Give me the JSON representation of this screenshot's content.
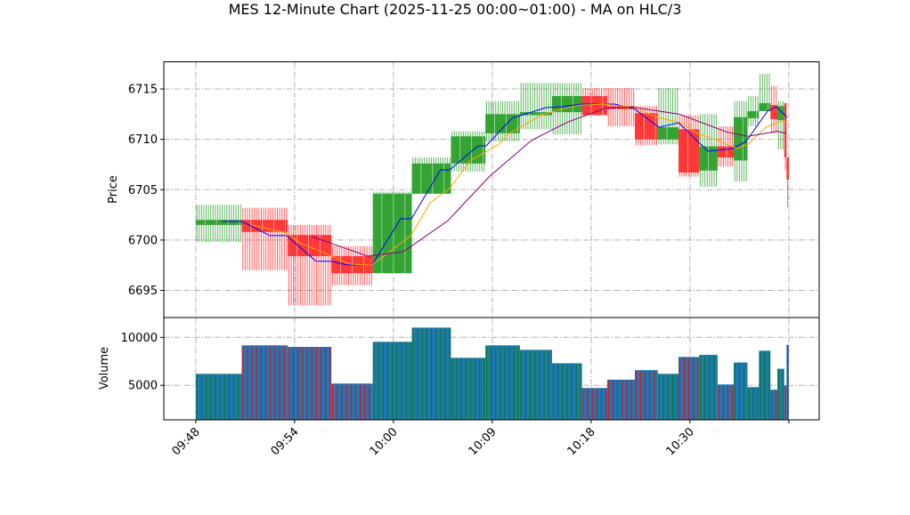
{
  "chart_data": {
    "type": "candlestick",
    "title": "MES 12-Minute Chart (2025-11-25 00:00~01:00) - MA on HLC/3",
    "price_panel": {
      "ylabel": "Price",
      "ylim": [
        6692.3,
        6717.7
      ],
      "yticks": [
        6695,
        6700,
        6705,
        6710,
        6715
      ],
      "grid": true
    },
    "volume_panel": {
      "ylabel": "Volume",
      "ylim": [
        1400,
        12070
      ],
      "yticks": [
        5000,
        10000
      ],
      "grid": true
    },
    "x_axis": {
      "unit": "bar index",
      "xlim": [
        -13.9,
        271.2
      ],
      "ticks": [
        {
          "x": 0,
          "label": "09:48"
        },
        {
          "x": 43,
          "label": "09:54"
        },
        {
          "x": 86,
          "label": "10:00"
        },
        {
          "x": 129,
          "label": "10:09"
        },
        {
          "x": 172,
          "label": "10:18"
        },
        {
          "x": 215,
          "label": "10:30"
        },
        {
          "x": 258,
          "label": ""
        }
      ]
    },
    "colors": {
      "up": "#2ca02c",
      "down": "#ff2a2a",
      "volume": "#1f77b4",
      "grid": "#b0b0b0"
    },
    "candle_groups": [
      {
        "start": 0,
        "end": 20,
        "open": 6701.5,
        "high": 6703.5,
        "low": 6699.8,
        "close": 6702.0,
        "volume": 6200
      },
      {
        "start": 20,
        "end": 40,
        "open": 6702.0,
        "high": 6703.2,
        "low": 6697.0,
        "close": 6700.8,
        "volume": 9170
      },
      {
        "start": 40,
        "end": 59,
        "open": 6700.5,
        "high": 6701.5,
        "low": 6693.5,
        "close": 6698.4,
        "volume": 9010
      },
      {
        "start": 59,
        "end": 77,
        "open": 6698.4,
        "high": 6699.4,
        "low": 6695.5,
        "close": 6696.7,
        "volume": 5180
      },
      {
        "start": 77,
        "end": 94,
        "open": 6696.7,
        "high": 6704.8,
        "low": 6696.7,
        "close": 6704.6,
        "volume": 9540
      },
      {
        "start": 94,
        "end": 111,
        "open": 6704.6,
        "high": 6708.2,
        "low": 6704.6,
        "close": 6707.6,
        "volume": 11020
      },
      {
        "start": 111,
        "end": 126,
        "open": 6707.6,
        "high": 6710.8,
        "low": 6706.8,
        "close": 6710.3,
        "volume": 7870
      },
      {
        "start": 126,
        "end": 141,
        "open": 6710.6,
        "high": 6713.8,
        "low": 6709.8,
        "close": 6712.5,
        "volume": 9170
      },
      {
        "start": 141,
        "end": 155,
        "open": 6712.4,
        "high": 6715.6,
        "low": 6711.0,
        "close": 6712.7,
        "volume": 8700
      },
      {
        "start": 155,
        "end": 168,
        "open": 6712.7,
        "high": 6715.6,
        "low": 6710.5,
        "close": 6714.3,
        "volume": 7300
      },
      {
        "start": 168,
        "end": 179,
        "open": 6714.3,
        "high": 6715.1,
        "low": 6712.4,
        "close": 6712.4,
        "volume": 4720
      },
      {
        "start": 179,
        "end": 191,
        "open": 6713.3,
        "high": 6715.1,
        "low": 6711.3,
        "close": 6713.0,
        "volume": 5590
      },
      {
        "start": 191,
        "end": 201,
        "open": 6712.6,
        "high": 6713.3,
        "low": 6709.4,
        "close": 6710.0,
        "volume": 6580
      },
      {
        "start": 201,
        "end": 210,
        "open": 6710.0,
        "high": 6715.1,
        "low": 6709.5,
        "close": 6711.2,
        "volume": 6200
      },
      {
        "start": 210,
        "end": 219,
        "open": 6711.0,
        "high": 6712.4,
        "low": 6706.3,
        "close": 6706.7,
        "volume": 7960
      },
      {
        "start": 219,
        "end": 227,
        "open": 6706.9,
        "high": 6712.5,
        "low": 6705.3,
        "close": 6709.3,
        "volume": 8180
      },
      {
        "start": 227,
        "end": 234,
        "open": 6709.3,
        "high": 6711.3,
        "low": 6707.3,
        "close": 6708.2,
        "volume": 5090
      },
      {
        "start": 234,
        "end": 240,
        "open": 6707.9,
        "high": 6713.8,
        "low": 6705.8,
        "close": 6712.2,
        "volume": 7380
      },
      {
        "start": 240,
        "end": 245,
        "open": 6712.1,
        "high": 6714.3,
        "low": 6711.3,
        "close": 6712.8,
        "volume": 4810
      },
      {
        "start": 245,
        "end": 250,
        "open": 6712.8,
        "high": 6716.5,
        "low": 6712.8,
        "close": 6713.6,
        "volume": 8610
      },
      {
        "start": 250,
        "end": 253,
        "open": 6713.4,
        "high": 6715.3,
        "low": 6710.6,
        "close": 6712.0,
        "volume": 4540
      },
      {
        "start": 253,
        "end": 256,
        "open": 6711.9,
        "high": 6713.8,
        "low": 6709.0,
        "close": 6713.3,
        "volume": 6730
      },
      {
        "start": 256,
        "end": 257,
        "open": 6713.6,
        "high": 6713.6,
        "low": 6706.9,
        "close": 6708.2,
        "volume": 5000
      },
      {
        "start": 257,
        "end": 258,
        "open": 6708.2,
        "high": 6708.2,
        "low": 6703.3,
        "close": 6706.0,
        "volume": 9230
      }
    ],
    "series": [
      {
        "name": "MA fast",
        "color": "#0000ff",
        "points": [
          [
            11.6,
            6701.85
          ],
          [
            20.1,
            6701.85
          ],
          [
            32.2,
            6700.44
          ],
          [
            39.5,
            6700.44
          ],
          [
            52.3,
            6697.88
          ],
          [
            58.9,
            6697.88
          ],
          [
            65.9,
            6697.52
          ],
          [
            76.7,
            6697.52
          ],
          [
            89.1,
            6702.11
          ],
          [
            93.8,
            6702.11
          ],
          [
            106.5,
            6706.97
          ],
          [
            110.4,
            6706.97
          ],
          [
            122.8,
            6709.35
          ],
          [
            126.3,
            6709.35
          ],
          [
            137.5,
            6712.09
          ],
          [
            141,
            6712.35
          ],
          [
            152.3,
            6713.15
          ],
          [
            158.9,
            6713.23
          ],
          [
            167.8,
            6713.5
          ],
          [
            182.1,
            6713.5
          ],
          [
            190.6,
            6713.06
          ],
          [
            201.5,
            6711.2
          ],
          [
            210,
            6711.65
          ],
          [
            222.8,
            6708.82
          ],
          [
            233.6,
            6709.09
          ],
          [
            239.4,
            6709.79
          ],
          [
            248.7,
            6712.79
          ],
          [
            252.6,
            6713.23
          ],
          [
            257.3,
            6712.18
          ]
        ]
      },
      {
        "name": "MA mid",
        "color": "#ffa500",
        "points": [
          [
            24.4,
            6701.5
          ],
          [
            39.5,
            6700.7
          ],
          [
            45.3,
            6699.73
          ],
          [
            58.1,
            6698.5
          ],
          [
            67,
            6697.6
          ],
          [
            76.3,
            6697.5
          ],
          [
            82.5,
            6698.5
          ],
          [
            93.8,
            6700.5
          ],
          [
            101.9,
            6703.7
          ],
          [
            110.4,
            6705.1
          ],
          [
            119.3,
            6707.9
          ],
          [
            125.1,
            6708.6
          ],
          [
            131.7,
            6709.5
          ],
          [
            135.6,
            6710.5
          ],
          [
            151.1,
            6712.5
          ],
          [
            166.6,
            6713.4
          ],
          [
            177.1,
            6713.5
          ],
          [
            189.8,
            6713.2
          ],
          [
            200.3,
            6712.2
          ],
          [
            210.4,
            6711.7
          ],
          [
            218.1,
            6710.6
          ],
          [
            225.9,
            6710.0
          ],
          [
            235.2,
            6709.1
          ],
          [
            240.2,
            6709.5
          ],
          [
            248,
            6711.2
          ],
          [
            254.5,
            6711.8
          ],
          [
            256.9,
            6711.7
          ]
        ]
      },
      {
        "name": "MA slow",
        "color": "#800080",
        "points": [
          [
            50.4,
            6700.35
          ],
          [
            74.8,
            6698.4
          ],
          [
            90.3,
            6698.85
          ],
          [
            109.6,
            6701.9
          ],
          [
            127.9,
            6706.35
          ],
          [
            146.1,
            6709.9
          ],
          [
            161.6,
            6711.7
          ],
          [
            178.2,
            6713.1
          ],
          [
            189.8,
            6713.2
          ],
          [
            210.4,
            6712.5
          ],
          [
            231.3,
            6710.7
          ],
          [
            240.2,
            6710.3
          ],
          [
            253,
            6710.8
          ],
          [
            256.9,
            6710.6
          ]
        ]
      }
    ]
  }
}
